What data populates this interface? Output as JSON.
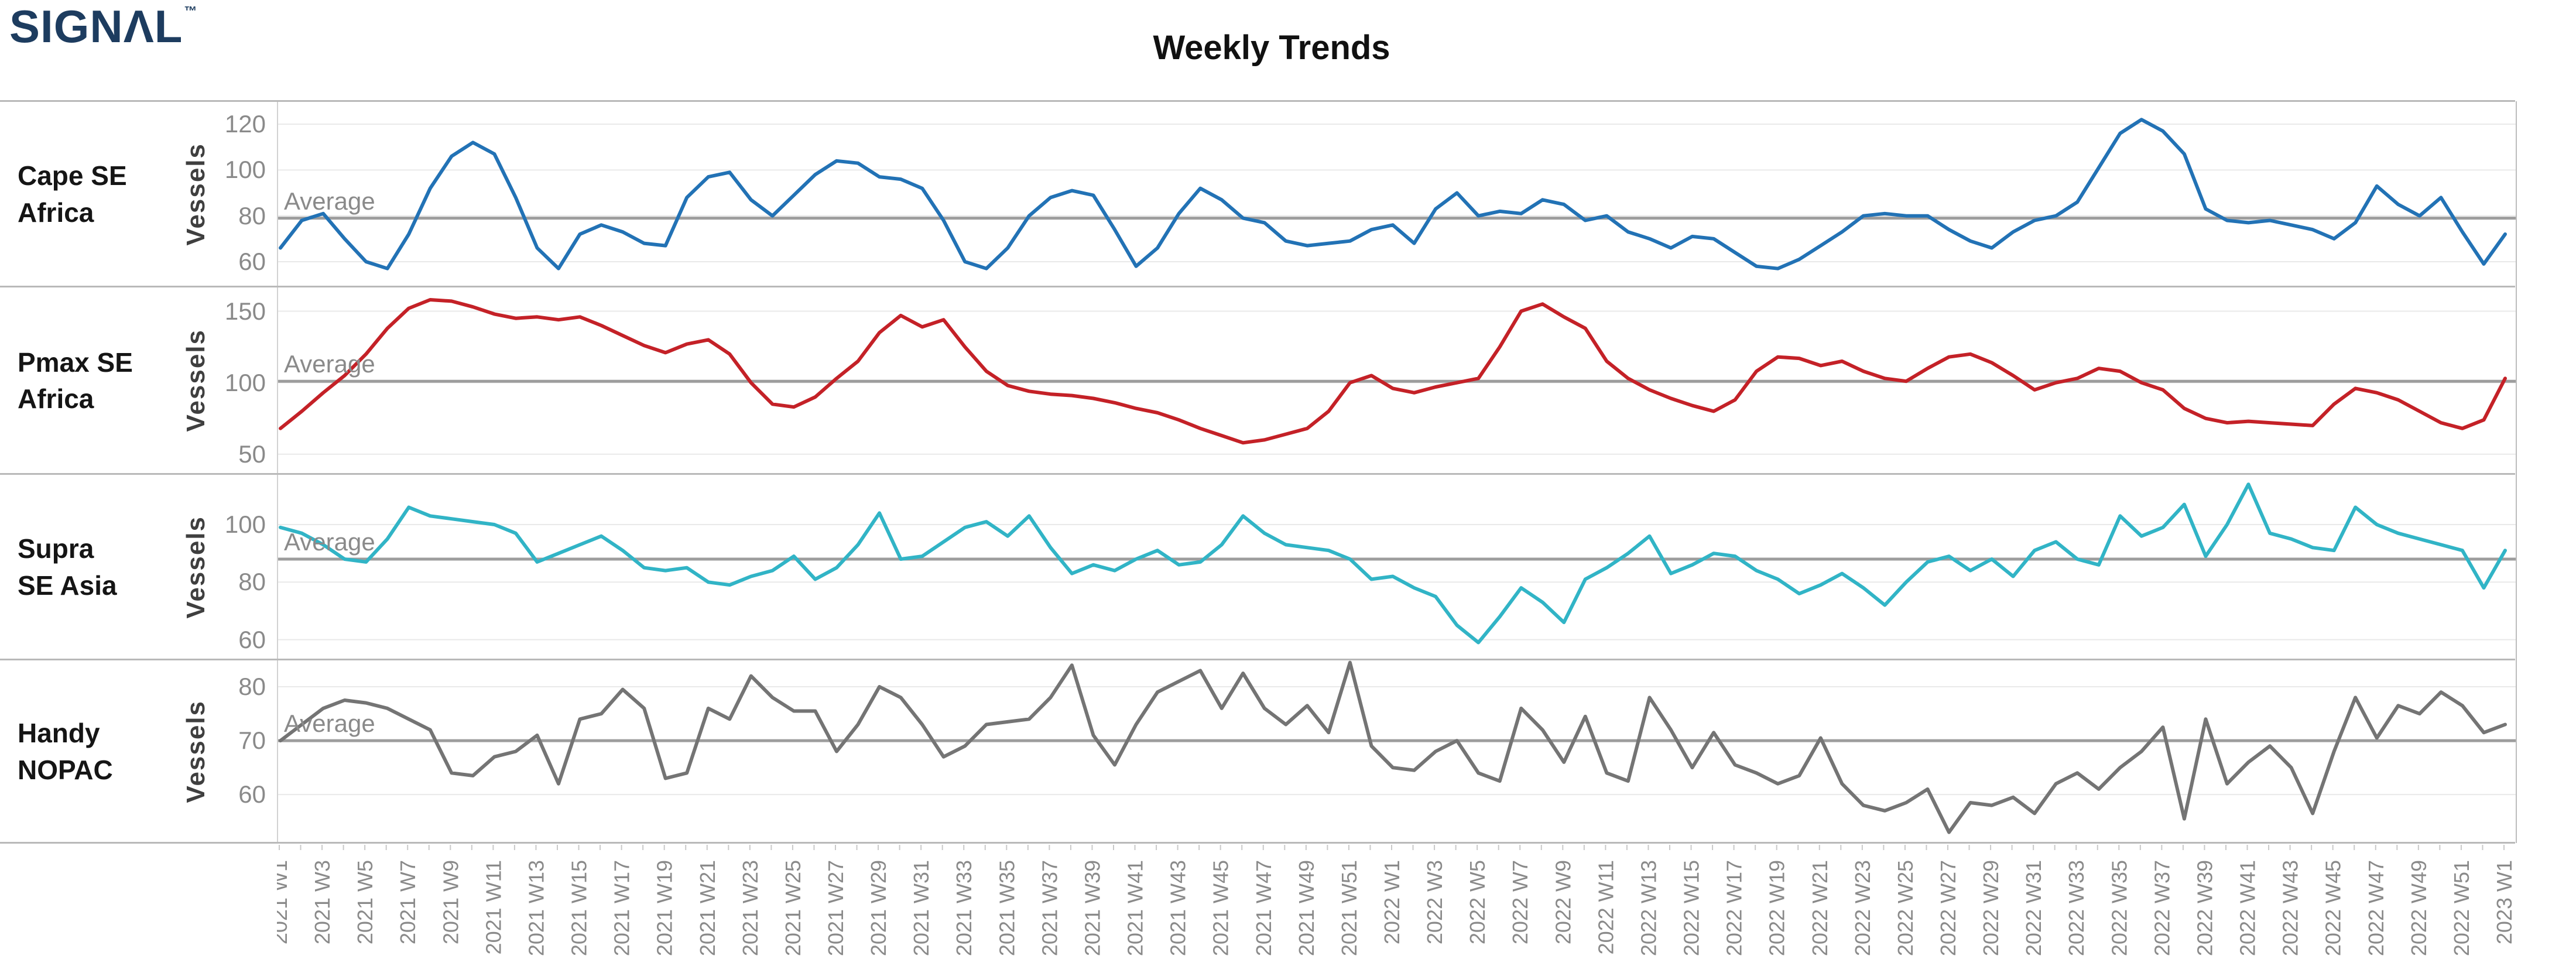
{
  "logo": {
    "text": "SIGNAL",
    "trademark": "TM",
    "color": "#1d3c5f"
  },
  "title": "Weekly Trends",
  "chart_data": {
    "type": "line",
    "title": "Weekly Trends",
    "x": {
      "n_points": 105,
      "unit": "ISO week",
      "first": "2021 W1",
      "last": "2023 W1",
      "tick_every_points": 2,
      "tick_labels": [
        "2021 W1",
        "2021 W3",
        "2021 W5",
        "2021 W7",
        "2021 W9",
        "2021 W11",
        "2021 W13",
        "2021 W15",
        "2021 W17",
        "2021 W19",
        "2021 W21",
        "2021 W23",
        "2021 W25",
        "2021 W27",
        "2021 W29",
        "2021 W31",
        "2021 W33",
        "2021 W35",
        "2021 W37",
        "2021 W39",
        "2021 W41",
        "2021 W43",
        "2021 W45",
        "2021 W47",
        "2021 W49",
        "2021 W51",
        "2022 W1",
        "2022 W3",
        "2022 W5",
        "2022 W7",
        "2022 W9",
        "2022 W11",
        "2022 W13",
        "2022 W15",
        "2022 W17",
        "2022 W19",
        "2022 W21",
        "2022 W23",
        "2022 W25",
        "2022 W27",
        "2022 W29",
        "2022 W31",
        "2022 W33",
        "2022 W35",
        "2022 W37",
        "2022 W39",
        "2022 W41",
        "2022 W43",
        "2022 W45",
        "2022 W47",
        "2022 W49",
        "2022 W51",
        "2023 W1"
      ]
    },
    "average_line_color": "#9d9d9d",
    "grid_color": "#e9e9e9",
    "charts": [
      {
        "row_label": "Cape SE\nAfrica",
        "y_axis_title": "Vessels",
        "average_label": "Average",
        "average": 79,
        "yticks": [
          120,
          100,
          80,
          60
        ],
        "ylim": [
          49,
          130
        ],
        "color": "#2272B5",
        "values": [
          66,
          78,
          81,
          70,
          60,
          57,
          72,
          92,
          106,
          112,
          107,
          88,
          66,
          57,
          72,
          76,
          73,
          68,
          67,
          88,
          97,
          99,
          87,
          80,
          89,
          98,
          104,
          103,
          97,
          96,
          92,
          78,
          60,
          57,
          66,
          80,
          88,
          91,
          89,
          74,
          58,
          66,
          81,
          92,
          87,
          79,
          77,
          69,
          67,
          68,
          69,
          74,
          76,
          68,
          83,
          90,
          80,
          82,
          81,
          87,
          85,
          78,
          80,
          73,
          70,
          66,
          71,
          70,
          64,
          58,
          57,
          61,
          67,
          73,
          80,
          81,
          80,
          80,
          74,
          69,
          66,
          73,
          78,
          80,
          86,
          101,
          116,
          122,
          117,
          107,
          83,
          78,
          77,
          78,
          76,
          74,
          70,
          77,
          93,
          85,
          80,
          88,
          73,
          59,
          72
        ]
      },
      {
        "row_label": "Pmax SE\nAfrica",
        "y_axis_title": "Vessels",
        "average_label": "Average",
        "average": 101,
        "yticks": [
          150,
          100,
          50
        ],
        "ylim": [
          36,
          167
        ],
        "color": "#C42127",
        "values": [
          68,
          80,
          93,
          105,
          120,
          138,
          152,
          158,
          157,
          153,
          148,
          145,
          146,
          144,
          146,
          140,
          133,
          126,
          121,
          127,
          130,
          120,
          100,
          85,
          83,
          90,
          103,
          115,
          135,
          147,
          139,
          144,
          125,
          108,
          98,
          94,
          92,
          91,
          89,
          86,
          82,
          79,
          74,
          68,
          63,
          58,
          60,
          64,
          68,
          80,
          100,
          105,
          96,
          93,
          97,
          100,
          103,
          125,
          150,
          155,
          146,
          138,
          115,
          103,
          95,
          89,
          84,
          80,
          88,
          108,
          118,
          117,
          112,
          115,
          108,
          103,
          101,
          110,
          118,
          120,
          114,
          105,
          95,
          100,
          103,
          110,
          108,
          100,
          95,
          82,
          75,
          72,
          73,
          72,
          71,
          70,
          85,
          96,
          93,
          88,
          80,
          72,
          68,
          74,
          103
        ]
      },
      {
        "row_label": "Supra\nSE Asia",
        "y_axis_title": "Vessels",
        "average_label": "Average",
        "average": 88,
        "yticks": [
          100,
          80,
          60
        ],
        "ylim": [
          53,
          117.5
        ],
        "color": "#31B4C6",
        "values": [
          99,
          97,
          93,
          88,
          87,
          95,
          106,
          103,
          102,
          101,
          100,
          97,
          87,
          90,
          93,
          96,
          91,
          85,
          84,
          85,
          80,
          79,
          82,
          84,
          89,
          81,
          85,
          93,
          104,
          88,
          89,
          94,
          99,
          101,
          96,
          103,
          92,
          83,
          86,
          84,
          88,
          91,
          86,
          87,
          93,
          103,
          97,
          93,
          92,
          91,
          88,
          81,
          82,
          78,
          75,
          65,
          59,
          68,
          78,
          73,
          66,
          81,
          85,
          90,
          96,
          83,
          86,
          90,
          89,
          84,
          81,
          76,
          79,
          83,
          78,
          72,
          80,
          87,
          89,
          84,
          88,
          82,
          91,
          94,
          88,
          86,
          103,
          96,
          99,
          107,
          89,
          100,
          114,
          97,
          95,
          92,
          91,
          106,
          100,
          97,
          95,
          93,
          91,
          78,
          91
        ]
      },
      {
        "row_label": "Handy\nNOPAC",
        "y_axis_title": "Vessels",
        "average_label": "Average",
        "average": 70,
        "yticks": [
          80,
          70,
          60
        ],
        "ylim": [
          51,
          85
        ],
        "color": "#747474",
        "values": [
          70,
          73,
          76,
          77.5,
          77,
          76,
          74,
          72,
          64,
          63.5,
          67,
          68,
          71,
          62,
          74,
          75,
          79.5,
          76,
          63,
          64,
          76,
          74,
          82,
          78,
          75.5,
          75.5,
          68,
          73,
          80,
          78,
          73,
          67,
          69,
          73,
          73.5,
          74,
          78,
          84,
          71,
          65.5,
          73,
          79,
          81,
          83,
          76,
          82.5,
          76,
          73,
          76.5,
          71.5,
          84.5,
          69,
          65,
          64.5,
          68,
          70,
          64,
          62.5,
          76,
          72,
          66,
          74.5,
          64,
          62.5,
          78,
          72,
          65,
          71.5,
          65.5,
          64,
          62,
          63.5,
          70.5,
          62,
          58,
          57,
          58.5,
          61,
          53,
          58.5,
          58,
          59.5,
          56.5,
          62,
          64,
          61,
          65,
          68,
          72.5,
          55.5,
          74,
          62,
          66,
          69,
          65,
          56.5,
          68,
          78,
          70.5,
          76.5,
          75,
          79,
          76.5,
          71.5,
          73
        ]
      }
    ]
  }
}
